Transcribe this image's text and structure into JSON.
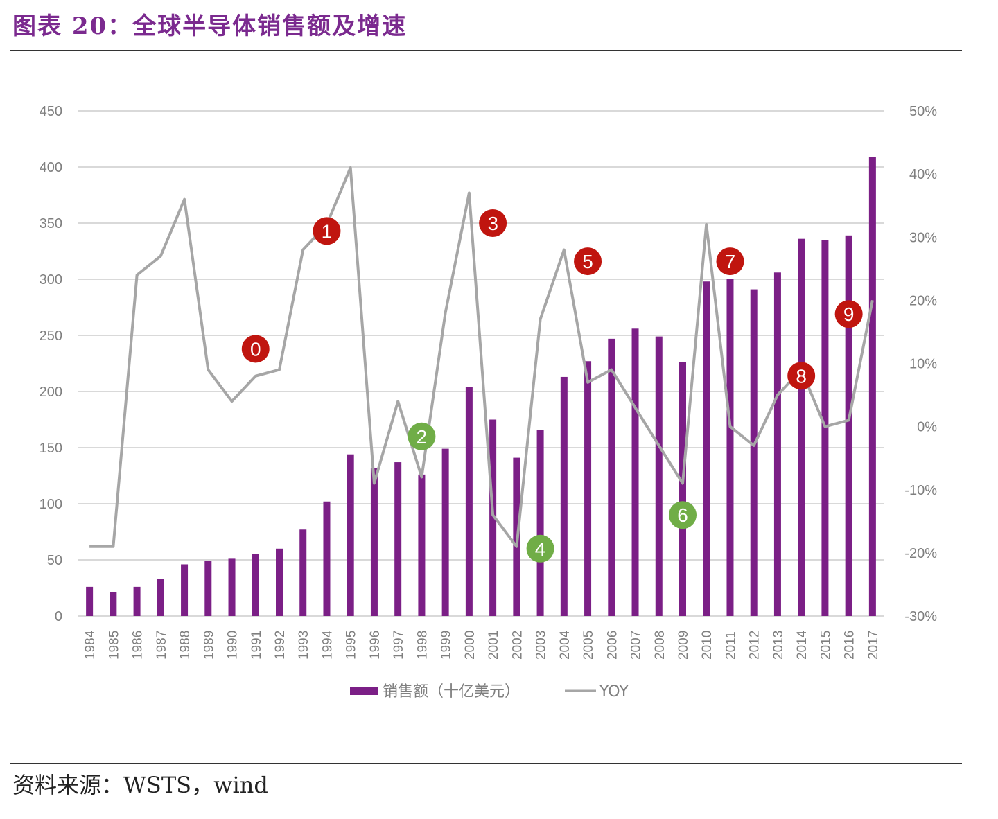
{
  "header": {
    "title": "图表 20：全球半导体销售额及增速"
  },
  "footer": {
    "source": "资料来源：WSTS，wind"
  },
  "colors": {
    "bar": "#7b1f86",
    "line": "#a6a6a6",
    "marker_red": "#c0150f",
    "marker_green": "#70ad47",
    "grid": "#d9d9d9",
    "title": "#7b2a8f"
  },
  "chart_data": {
    "type": "bar+line",
    "categories": [
      "1984",
      "1985",
      "1986",
      "1987",
      "1988",
      "1989",
      "1990",
      "1991",
      "1992",
      "1993",
      "1994",
      "1995",
      "1996",
      "1997",
      "1998",
      "1999",
      "2000",
      "2001",
      "2002",
      "2003",
      "2004",
      "2005",
      "2006",
      "2007",
      "2008",
      "2009",
      "2010",
      "2011",
      "2012",
      "2013",
      "2014",
      "2015",
      "2016",
      "2017"
    ],
    "series": [
      {
        "name": "销售额（十亿美元）",
        "type": "bar",
        "axis": "left",
        "values": [
          26,
          21,
          26,
          33,
          46,
          49,
          51,
          55,
          60,
          77,
          102,
          144,
          132,
          137,
          126,
          149,
          204,
          175,
          141,
          166,
          213,
          227,
          247,
          256,
          249,
          226,
          298,
          300,
          291,
          306,
          336,
          335,
          339,
          409
        ]
      },
      {
        "name": "YOY",
        "type": "line",
        "axis": "right",
        "values": [
          -19,
          -19,
          24,
          27,
          36,
          9,
          4,
          8,
          9,
          28,
          32,
          41,
          -9,
          4,
          -8,
          18,
          37,
          -14,
          -19,
          17,
          28,
          7,
          9,
          3,
          -3,
          -9,
          32,
          0,
          -3,
          5,
          9,
          0,
          1,
          20
        ]
      }
    ],
    "y_left": {
      "min": 0,
      "max": 450,
      "ticks": [
        "0",
        "50",
        "100",
        "150",
        "200",
        "250",
        "300",
        "350",
        "400",
        "450"
      ]
    },
    "y_right": {
      "min": -30,
      "max": 50,
      "ticks": [
        "-30%",
        "-20%",
        "-10%",
        "0%",
        "10%",
        "20%",
        "30%",
        "40%",
        "50%"
      ]
    },
    "grid": true,
    "legend": {
      "placement": "bottom",
      "entries": [
        "销售额（十亿美元）",
        "YOY"
      ]
    },
    "annotations": [
      {
        "label": "0",
        "color": "red",
        "x": "1991",
        "y_left": 238
      },
      {
        "label": "1",
        "color": "red",
        "x": "1994",
        "y_left": 343
      },
      {
        "label": "2",
        "color": "green",
        "x": "1998",
        "y_left": 160
      },
      {
        "label": "3",
        "color": "red",
        "x": "2001",
        "y_left": 350
      },
      {
        "label": "4",
        "color": "green",
        "x": "2003",
        "y_left": 60
      },
      {
        "label": "5",
        "color": "red",
        "x": "2005",
        "y_left": 316
      },
      {
        "label": "6",
        "color": "green",
        "x": "2009",
        "y_left": 90
      },
      {
        "label": "7",
        "color": "red",
        "x": "2011",
        "y_left": 316
      },
      {
        "label": "8",
        "color": "red",
        "x": "2014",
        "y_left": 214
      },
      {
        "label": "9",
        "color": "red",
        "x": "2016",
        "y_left": 269
      }
    ]
  }
}
